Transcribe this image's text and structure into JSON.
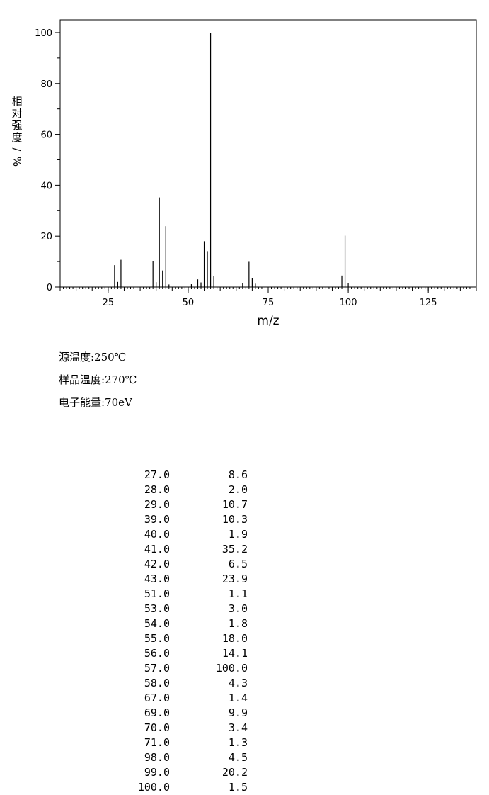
{
  "chart_data": {
    "type": "bar",
    "ylabel": "相对强度/%",
    "xlabel": "m/z",
    "xlim": [
      10,
      140
    ],
    "ylim": [
      0,
      105
    ],
    "x_ticks": [
      25,
      50,
      75,
      100,
      125
    ],
    "y_ticks": [
      0,
      20,
      40,
      60,
      80,
      100
    ],
    "grid": false,
    "series": [
      {
        "x": [
          27,
          28,
          29,
          39,
          40,
          41,
          42,
          43,
          44,
          51,
          53,
          54,
          55,
          56,
          57,
          58,
          67,
          69,
          70,
          71,
          98,
          99,
          100
        ],
        "values": [
          8.6,
          2.0,
          10.7,
          10.3,
          1.9,
          35.2,
          6.5,
          23.9,
          1.0,
          1.1,
          3.0,
          1.8,
          18.0,
          14.1,
          100.0,
          4.3,
          1.4,
          9.9,
          3.4,
          1.3,
          4.5,
          20.2,
          1.5
        ]
      }
    ]
  },
  "conditions": [
    "源温度:250℃",
    "样品温度:270℃",
    "电子能量:70eV"
  ],
  "peak_table": [
    {
      "mz": "27.0",
      "intensity": "8.6"
    },
    {
      "mz": "28.0",
      "intensity": "2.0"
    },
    {
      "mz": "29.0",
      "intensity": "10.7"
    },
    {
      "mz": "39.0",
      "intensity": "10.3"
    },
    {
      "mz": "40.0",
      "intensity": "1.9"
    },
    {
      "mz": "41.0",
      "intensity": "35.2"
    },
    {
      "mz": "42.0",
      "intensity": "6.5"
    },
    {
      "mz": "43.0",
      "intensity": "23.9"
    },
    {
      "mz": "51.0",
      "intensity": "1.1"
    },
    {
      "mz": "53.0",
      "intensity": "3.0"
    },
    {
      "mz": "54.0",
      "intensity": "1.8"
    },
    {
      "mz": "55.0",
      "intensity": "18.0"
    },
    {
      "mz": "56.0",
      "intensity": "14.1"
    },
    {
      "mz": "57.0",
      "intensity": "100.0"
    },
    {
      "mz": "58.0",
      "intensity": "4.3"
    },
    {
      "mz": "67.0",
      "intensity": "1.4"
    },
    {
      "mz": "69.0",
      "intensity": "9.9"
    },
    {
      "mz": "70.0",
      "intensity": "3.4"
    },
    {
      "mz": "71.0",
      "intensity": "1.3"
    },
    {
      "mz": "98.0",
      "intensity": "4.5"
    },
    {
      "mz": "99.0",
      "intensity": "20.2"
    },
    {
      "mz": "100.0",
      "intensity": "1.5"
    }
  ]
}
